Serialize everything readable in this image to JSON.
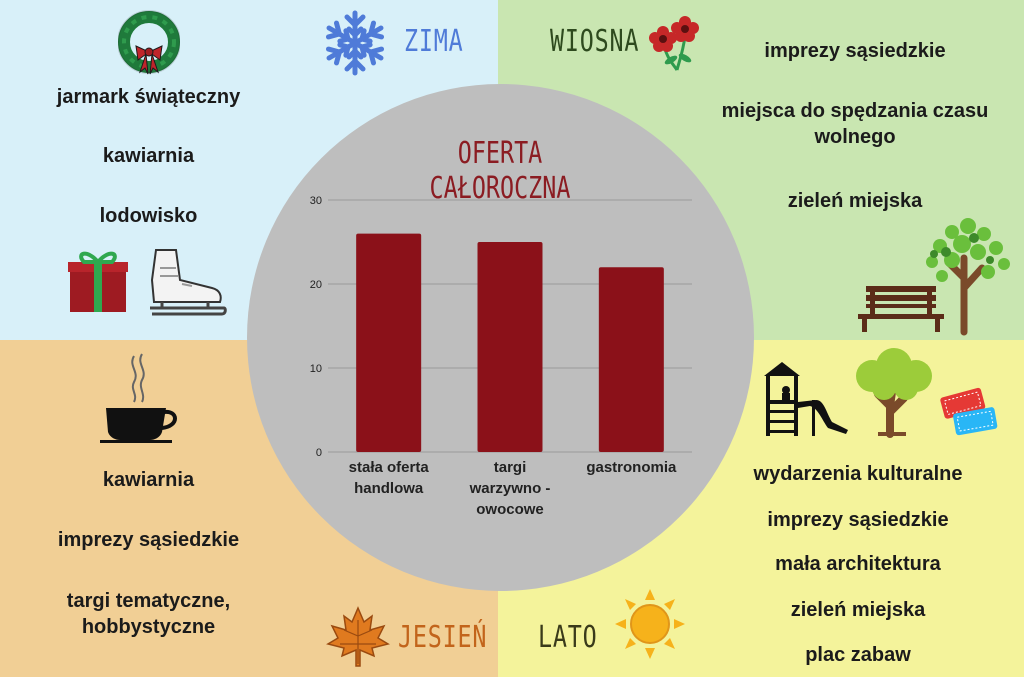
{
  "seasons": {
    "winter": {
      "name": "ZIMA",
      "items": [
        "jarmark świąteczny",
        "kawiarnia",
        "lodowisko"
      ]
    },
    "spring": {
      "name": "WIOSNA",
      "items": [
        "imprezy sąsiedzkie",
        "miejsca do spędzania czasu wolnego",
        "zieleń miejska"
      ]
    },
    "autumn": {
      "name": "JESIEŃ",
      "items": [
        "kawiarnia",
        "imprezy sąsiedzkie",
        "targi tematyczne, hobbystyczne"
      ]
    },
    "summer": {
      "name": "LATO",
      "items": [
        "wydarzenia kulturalne",
        "imprezy sąsiedzkie",
        "mała architektura",
        "zieleń miejska",
        "plac zabaw"
      ]
    }
  },
  "icons": {
    "winter": [
      "wreath-icon",
      "snowflake-icon",
      "gift-icon",
      "ice-skate-icon"
    ],
    "spring": [
      "flowers-icon",
      "tree-icon",
      "bench-icon"
    ],
    "autumn": [
      "coffee-cup-icon",
      "maple-leaf-icon"
    ],
    "summer": [
      "playground-icon",
      "tree-icon",
      "cinema-tickets-icon",
      "sun-icon"
    ]
  },
  "colors": {
    "winter": "#d8f0f9",
    "spring": "#c9e6b1",
    "autumn": "#f1cf95",
    "summer": "#f4f39b",
    "circle": "#bebebe",
    "bar": "#8b1119",
    "title": "#8b1c22"
  },
  "chart_data": {
    "type": "bar",
    "title": "OFERTA CAŁOROCZNA",
    "categories": [
      "stała oferta handlowa",
      "targi warzywno - owocowe",
      "gastronomia"
    ],
    "values": [
      26,
      25,
      22
    ],
    "ylim": [
      0,
      30
    ],
    "yticks": [
      0,
      10,
      20,
      30
    ],
    "xlabel": "",
    "ylabel": "",
    "grid": true
  }
}
